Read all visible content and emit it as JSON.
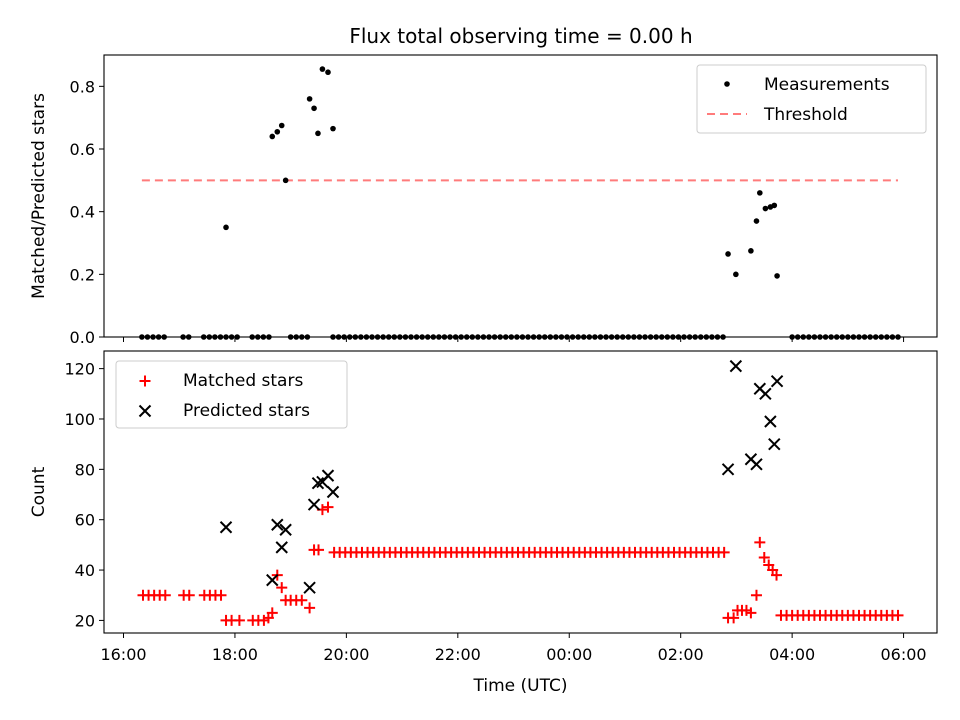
{
  "title": "Flux total observing time = 0.00 h",
  "chart_data": [
    {
      "type": "scatter",
      "panel": "top",
      "ylabel": "Matched/Predicted stars",
      "xlabel": "",
      "x_unit": "hours since 16:00 UTC",
      "xlim": [
        -0.35,
        14.6
      ],
      "ylim": [
        0,
        0.9
      ],
      "yticks": [
        0.0,
        0.2,
        0.4,
        0.6,
        0.8
      ],
      "ytick_labels": [
        "0.0",
        "0.2",
        "0.4",
        "0.6",
        "0.8"
      ],
      "legend_position": "top-right",
      "legend": [
        "Measurements",
        "Threshold"
      ],
      "threshold": {
        "name": "Threshold",
        "value": 0.5,
        "x_range": [
          0.33,
          13.9
        ],
        "color": "#ff7b7b"
      },
      "series": [
        {
          "name": "Measurements",
          "color": "#000000",
          "points": [
            [
              1.84,
              0.35
            ],
            [
              2.67,
              0.64
            ],
            [
              2.76,
              0.655
            ],
            [
              2.84,
              0.675
            ],
            [
              2.91,
              0.5
            ],
            [
              3.34,
              0.76
            ],
            [
              3.42,
              0.73
            ],
            [
              3.49,
              0.65
            ],
            [
              3.57,
              0.855
            ],
            [
              3.67,
              0.845
            ],
            [
              3.76,
              0.665
            ],
            [
              10.85,
              0.265
            ],
            [
              10.99,
              0.2
            ],
            [
              11.26,
              0.275
            ],
            [
              11.36,
              0.37
            ],
            [
              11.42,
              0.46
            ],
            [
              11.52,
              0.41
            ],
            [
              11.61,
              0.415
            ],
            [
              11.68,
              0.42
            ],
            [
              11.73,
              0.195
            ]
          ],
          "zero_segments": [
            [
              0.33,
              0.75
            ],
            [
              1.07,
              1.22
            ],
            [
              1.44,
              1.84
            ],
            [
              1.94,
              2.08
            ],
            [
              2.31,
              2.67
            ],
            [
              3.0,
              3.34
            ],
            [
              3.76,
              10.8
            ],
            [
              12.0,
              13.9
            ]
          ],
          "zero_spacing": 0.1
        }
      ]
    },
    {
      "type": "scatter",
      "panel": "bottom",
      "ylabel": "Count",
      "xlabel": "Time (UTC)",
      "x_unit": "hours since 16:00 UTC",
      "xlim": [
        -0.35,
        14.6
      ],
      "ylim": [
        15,
        127
      ],
      "yticks": [
        20,
        40,
        60,
        80,
        100,
        120
      ],
      "ytick_labels": [
        "20",
        "40",
        "60",
        "80",
        "100",
        "120"
      ],
      "xticks": [
        0,
        2,
        4,
        6,
        8,
        10,
        12,
        14
      ],
      "xtick_labels": [
        "16:00",
        "18:00",
        "20:00",
        "22:00",
        "00:00",
        "02:00",
        "04:00",
        "06:00"
      ],
      "legend_position": "top-left",
      "legend": [
        "Matched stars",
        "Predicted stars"
      ],
      "series": [
        {
          "name": "Matched stars",
          "color": "#ff0000",
          "marker": "plus",
          "points": [
            [
              0.35,
              30
            ],
            [
              0.45,
              30
            ],
            [
              0.55,
              30
            ],
            [
              0.65,
              30
            ],
            [
              0.75,
              30
            ],
            [
              1.08,
              30
            ],
            [
              1.18,
              30
            ],
            [
              1.45,
              30
            ],
            [
              1.55,
              30
            ],
            [
              1.65,
              30
            ],
            [
              1.75,
              30
            ],
            [
              1.84,
              20
            ],
            [
              1.94,
              20
            ],
            [
              2.08,
              20
            ],
            [
              2.32,
              20
            ],
            [
              2.42,
              20
            ],
            [
              2.52,
              20
            ],
            [
              2.6,
              21
            ],
            [
              2.67,
              23
            ],
            [
              2.76,
              38
            ],
            [
              2.84,
              33
            ],
            [
              2.91,
              28
            ],
            [
              3.0,
              28
            ],
            [
              3.1,
              28
            ],
            [
              3.2,
              28
            ],
            [
              3.34,
              25
            ],
            [
              3.42,
              48
            ],
            [
              3.5,
              48
            ],
            [
              3.57,
              64
            ],
            [
              3.67,
              65
            ]
          ],
          "flat_runs": [
            {
              "y": 47,
              "from": 3.78,
              "to": 10.8,
              "step": 0.1
            },
            {
              "y": 22,
              "from": 11.9,
              "to": 13.95,
              "step": 0.1
            }
          ],
          "points_late": [
            [
              10.85,
              21
            ],
            [
              10.95,
              21
            ],
            [
              11.02,
              24
            ],
            [
              11.1,
              24
            ],
            [
              11.18,
              24
            ],
            [
              11.26,
              23
            ],
            [
              11.36,
              30
            ],
            [
              11.42,
              51
            ],
            [
              11.5,
              45
            ],
            [
              11.58,
              42
            ],
            [
              11.65,
              40
            ],
            [
              11.72,
              38
            ],
            [
              11.8,
              22
            ]
          ]
        },
        {
          "name": "Predicted stars",
          "color": "#000000",
          "marker": "x",
          "points": [
            [
              1.84,
              57
            ],
            [
              2.67,
              36
            ],
            [
              2.76,
              58
            ],
            [
              2.84,
              49
            ],
            [
              2.91,
              56
            ],
            [
              3.34,
              33
            ],
            [
              3.42,
              66
            ],
            [
              3.49,
              74.5
            ],
            [
              3.57,
              75
            ],
            [
              3.67,
              77.5
            ],
            [
              3.76,
              71
            ],
            [
              10.85,
              80
            ],
            [
              10.99,
              121
            ],
            [
              11.26,
              84
            ],
            [
              11.36,
              82
            ],
            [
              11.42,
              112
            ],
            [
              11.52,
              110
            ],
            [
              11.61,
              99
            ],
            [
              11.68,
              90
            ],
            [
              11.73,
              115
            ]
          ]
        }
      ]
    }
  ]
}
